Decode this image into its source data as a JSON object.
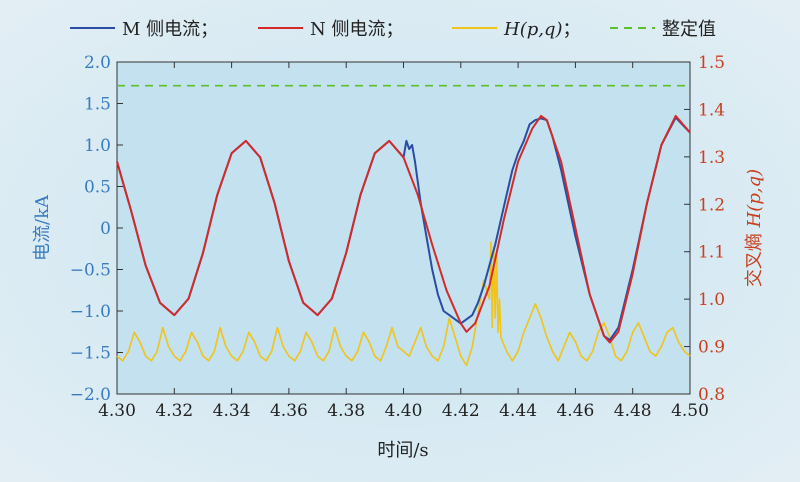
{
  "chart_data": {
    "type": "line",
    "legend": {
      "placement": "top",
      "entries": [
        {
          "text": "M 侧电流；",
          "color": "#2a4da3",
          "style": "solid"
        },
        {
          "text": "N 侧电流；",
          "color": "#d42a2a",
          "style": "solid"
        },
        {
          "text": "H(p,q)；",
          "color": "#f0c419",
          "style": "solid"
        },
        {
          "text": "整定值",
          "color": "#5cc02d",
          "style": "dashed"
        }
      ]
    },
    "xlabel": "时间/s",
    "ylabel_left": "电流/kA",
    "ylabel_right": "交叉熵 H(p,q)",
    "xlim": [
      4.3,
      4.5
    ],
    "ylim_left": [
      -2.0,
      2.0
    ],
    "ylim_right": [
      0.8,
      1.5
    ],
    "x_ticks": [
      "4.30",
      "4.32",
      "4.34",
      "4.36",
      "4.38",
      "4.40",
      "4.42",
      "4.44",
      "4.46",
      "4.48",
      "4.50"
    ],
    "y_left_ticks": [
      "2.0",
      "1.5",
      "1.0",
      "0.5",
      "0",
      "−0.5",
      "−1.0",
      "−1.5",
      "−2.0"
    ],
    "y_right_ticks": [
      "1.5",
      "1.4",
      "1.3",
      "1.2",
      "1.1",
      "1.0",
      "0.9",
      "0.8"
    ],
    "grid": false,
    "colors": {
      "left_axis": "#3a7bbf",
      "right_axis": "#c9401e",
      "plot_bg": "#c3e1ee"
    },
    "series": [
      {
        "name": "M 侧电流",
        "axis": "left",
        "x": [
          4.3,
          4.305,
          4.31,
          4.315,
          4.32,
          4.325,
          4.33,
          4.335,
          4.34,
          4.345,
          4.35,
          4.355,
          4.36,
          4.365,
          4.37,
          4.375,
          4.38,
          4.385,
          4.39,
          4.395,
          4.4,
          4.401,
          4.402,
          4.403,
          4.404,
          4.406,
          4.408,
          4.41,
          4.412,
          4.414,
          4.416,
          4.418,
          4.42,
          4.422,
          4.424,
          4.426,
          4.428,
          4.43,
          4.432,
          4.434,
          4.436,
          4.438,
          4.44,
          4.442,
          4.444,
          4.446,
          4.448,
          4.45,
          4.452,
          4.455,
          4.46,
          4.465,
          4.47,
          4.472,
          4.475,
          4.48,
          4.485,
          4.49,
          4.495,
          4.5
        ],
        "y": [
          0.8,
          0.2,
          -0.45,
          -0.9,
          -1.05,
          -0.85,
          -0.3,
          0.4,
          0.9,
          1.05,
          0.85,
          0.3,
          -0.4,
          -0.9,
          -1.05,
          -0.85,
          -0.3,
          0.4,
          0.9,
          1.05,
          0.85,
          1.05,
          0.95,
          1.0,
          0.8,
          0.3,
          -0.1,
          -0.5,
          -0.8,
          -1.0,
          -1.05,
          -1.1,
          -1.15,
          -1.1,
          -1.05,
          -0.9,
          -0.7,
          -0.45,
          -0.2,
          0.1,
          0.4,
          0.7,
          0.9,
          1.05,
          1.25,
          1.3,
          1.32,
          1.3,
          1.1,
          0.7,
          -0.1,
          -0.8,
          -1.3,
          -1.35,
          -1.2,
          -0.5,
          0.3,
          1.0,
          1.33,
          1.15
        ]
      },
      {
        "name": "N 侧电流",
        "axis": "left",
        "x": [
          4.3,
          4.305,
          4.31,
          4.315,
          4.32,
          4.325,
          4.33,
          4.335,
          4.34,
          4.345,
          4.35,
          4.355,
          4.36,
          4.365,
          4.37,
          4.375,
          4.38,
          4.385,
          4.39,
          4.395,
          4.4,
          4.405,
          4.41,
          4.415,
          4.42,
          4.422,
          4.425,
          4.43,
          4.435,
          4.44,
          4.445,
          4.448,
          4.45,
          4.455,
          4.46,
          4.465,
          4.47,
          4.472,
          4.475,
          4.48,
          4.485,
          4.49,
          4.495,
          4.5
        ],
        "y": [
          0.8,
          0.2,
          -0.45,
          -0.9,
          -1.05,
          -0.85,
          -0.3,
          0.4,
          0.9,
          1.05,
          0.85,
          0.3,
          -0.4,
          -0.9,
          -1.05,
          -0.85,
          -0.3,
          0.4,
          0.9,
          1.05,
          0.85,
          0.4,
          -0.2,
          -0.75,
          -1.15,
          -1.25,
          -1.15,
          -0.7,
          0.1,
          0.8,
          1.2,
          1.35,
          1.3,
          0.8,
          0.0,
          -0.8,
          -1.3,
          -1.38,
          -1.25,
          -0.55,
          0.3,
          1.0,
          1.35,
          1.15
        ]
      },
      {
        "name": "H(p,q)",
        "axis": "right",
        "x": [
          4.3,
          4.302,
          4.304,
          4.306,
          4.308,
          4.31,
          4.312,
          4.314,
          4.316,
          4.318,
          4.32,
          4.322,
          4.324,
          4.326,
          4.328,
          4.33,
          4.332,
          4.334,
          4.336,
          4.338,
          4.34,
          4.342,
          4.344,
          4.346,
          4.348,
          4.35,
          4.352,
          4.354,
          4.356,
          4.358,
          4.36,
          4.362,
          4.364,
          4.366,
          4.368,
          4.37,
          4.372,
          4.374,
          4.376,
          4.378,
          4.38,
          4.382,
          4.384,
          4.386,
          4.388,
          4.39,
          4.392,
          4.394,
          4.396,
          4.398,
          4.4,
          4.402,
          4.404,
          4.406,
          4.408,
          4.41,
          4.412,
          4.414,
          4.416,
          4.418,
          4.42,
          4.422,
          4.424,
          4.426,
          4.428,
          4.43,
          4.4305,
          4.431,
          4.4315,
          4.432,
          4.4325,
          4.433,
          4.4335,
          4.434,
          4.436,
          4.438,
          4.44,
          4.442,
          4.444,
          4.446,
          4.448,
          4.45,
          4.452,
          4.454,
          4.456,
          4.458,
          4.46,
          4.462,
          4.464,
          4.466,
          4.468,
          4.47,
          4.472,
          4.474,
          4.476,
          4.478,
          4.48,
          4.482,
          4.484,
          4.486,
          4.488,
          4.49,
          4.492,
          4.494,
          4.496,
          4.498,
          4.5
        ],
        "y": [
          0.88,
          0.87,
          0.89,
          0.93,
          0.91,
          0.88,
          0.87,
          0.89,
          0.94,
          0.9,
          0.88,
          0.87,
          0.89,
          0.93,
          0.91,
          0.88,
          0.87,
          0.89,
          0.94,
          0.9,
          0.88,
          0.87,
          0.89,
          0.93,
          0.91,
          0.88,
          0.87,
          0.89,
          0.94,
          0.9,
          0.88,
          0.87,
          0.89,
          0.93,
          0.91,
          0.88,
          0.87,
          0.89,
          0.94,
          0.9,
          0.88,
          0.87,
          0.89,
          0.93,
          0.91,
          0.88,
          0.87,
          0.9,
          0.94,
          0.9,
          0.89,
          0.88,
          0.91,
          0.94,
          0.9,
          0.88,
          0.87,
          0.9,
          0.96,
          0.92,
          0.88,
          0.86,
          0.9,
          0.97,
          1.04,
          1.0,
          1.12,
          0.94,
          1.11,
          0.96,
          1.1,
          0.93,
          1.0,
          0.92,
          0.89,
          0.87,
          0.89,
          0.93,
          0.96,
          0.99,
          0.96,
          0.92,
          0.89,
          0.87,
          0.9,
          0.93,
          0.91,
          0.88,
          0.87,
          0.89,
          0.93,
          0.95,
          0.92,
          0.88,
          0.87,
          0.89,
          0.93,
          0.95,
          0.92,
          0.89,
          0.88,
          0.9,
          0.93,
          0.94,
          0.91,
          0.89,
          0.88
        ]
      },
      {
        "name": "整定值",
        "axis": "right",
        "style": "dashed",
        "x": [
          4.3,
          4.5
        ],
        "y": [
          1.45,
          1.45
        ]
      }
    ]
  }
}
